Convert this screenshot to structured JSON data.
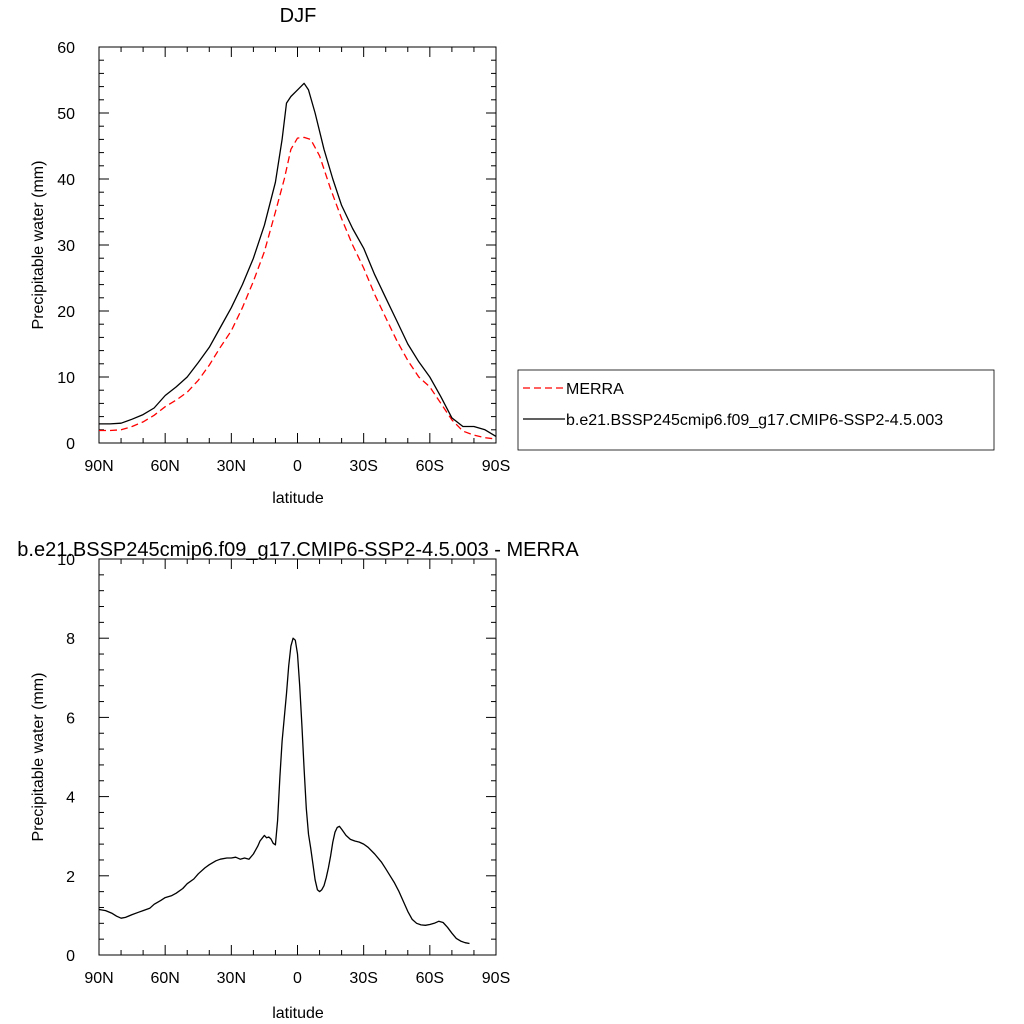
{
  "chart_data": [
    {
      "type": "line",
      "title": "DJF",
      "xlabel": "latitude",
      "ylabel": "Precipitable water (mm)",
      "xlim": [
        90,
        -90
      ],
      "ylim": [
        0,
        60
      ],
      "xticks": [
        {
          "value": 90,
          "label": "90N"
        },
        {
          "value": 60,
          "label": "60N"
        },
        {
          "value": 30,
          "label": "30N"
        },
        {
          "value": 0,
          "label": "0"
        },
        {
          "value": -30,
          "label": "30S"
        },
        {
          "value": -60,
          "label": "60S"
        },
        {
          "value": -90,
          "label": "90S"
        }
      ],
      "yticks": [
        0,
        10,
        20,
        30,
        40,
        50,
        60
      ],
      "legend_position": "right",
      "series": [
        {
          "name": "MERRA",
          "color": "#ff0000",
          "dash": "dashed",
          "points": [
            [
              90,
              1.9
            ],
            [
              85,
              1.9
            ],
            [
              80,
              2.0
            ],
            [
              75,
              2.5
            ],
            [
              70,
              3.2
            ],
            [
              65,
              4.2
            ],
            [
              60,
              5.5
            ],
            [
              55,
              6.5
            ],
            [
              50,
              7.7
            ],
            [
              45,
              9.5
            ],
            [
              40,
              11.8
            ],
            [
              35,
              14.5
            ],
            [
              30,
              17.0
            ],
            [
              25,
              20.5
            ],
            [
              20,
              24.5
            ],
            [
              15,
              29.0
            ],
            [
              10,
              35.0
            ],
            [
              6,
              40.0
            ],
            [
              3,
              44.5
            ],
            [
              0,
              46.2
            ],
            [
              -3,
              46.3
            ],
            [
              -6,
              46.0
            ],
            [
              -10,
              43.5
            ],
            [
              -15,
              38.5
            ],
            [
              -20,
              34.0
            ],
            [
              -25,
              30.0
            ],
            [
              -30,
              26.5
            ],
            [
              -35,
              22.5
            ],
            [
              -40,
              19.0
            ],
            [
              -45,
              15.5
            ],
            [
              -50,
              12.5
            ],
            [
              -55,
              10.0
            ],
            [
              -60,
              8.5
            ],
            [
              -65,
              6.0
            ],
            [
              -70,
              3.5
            ],
            [
              -75,
              1.8
            ],
            [
              -80,
              1.2
            ],
            [
              -85,
              0.8
            ],
            [
              -90,
              0.6
            ]
          ]
        },
        {
          "name": "b.e21.BSSP245cmip6.f09_g17.CMIP6-SSP2-4.5.003",
          "color": "#000000",
          "dash": "solid",
          "points": [
            [
              90,
              2.9
            ],
            [
              85,
              2.9
            ],
            [
              80,
              3.0
            ],
            [
              75,
              3.6
            ],
            [
              70,
              4.3
            ],
            [
              65,
              5.3
            ],
            [
              60,
              7.2
            ],
            [
              55,
              8.5
            ],
            [
              50,
              10.0
            ],
            [
              45,
              12.2
            ],
            [
              40,
              14.5
            ],
            [
              35,
              17.5
            ],
            [
              30,
              20.5
            ],
            [
              25,
              24.0
            ],
            [
              20,
              28.0
            ],
            [
              15,
              33.0
            ],
            [
              10,
              39.5
            ],
            [
              7,
              46.0
            ],
            [
              5,
              51.5
            ],
            [
              3,
              52.5
            ],
            [
              0,
              53.5
            ],
            [
              -3,
              54.5
            ],
            [
              -5,
              53.5
            ],
            [
              -8,
              50.0
            ],
            [
              -12,
              44.5
            ],
            [
              -16,
              40.0
            ],
            [
              -20,
              36.0
            ],
            [
              -25,
              32.5
            ],
            [
              -30,
              29.5
            ],
            [
              -35,
              25.5
            ],
            [
              -40,
              22.0
            ],
            [
              -45,
              18.5
            ],
            [
              -50,
              15.0
            ],
            [
              -55,
              12.3
            ],
            [
              -60,
              10.0
            ],
            [
              -65,
              7.0
            ],
            [
              -70,
              3.8
            ],
            [
              -75,
              2.5
            ],
            [
              -80,
              2.5
            ],
            [
              -85,
              2.0
            ],
            [
              -90,
              1.0
            ]
          ]
        }
      ]
    },
    {
      "type": "line",
      "title": "b.e21.BSSP245cmip6.f09_g17.CMIP6-SSP2-4.5.003 - MERRA",
      "xlabel": "latitude",
      "ylabel": "Precipitable water (mm)",
      "xlim": [
        90,
        -90
      ],
      "ylim": [
        0,
        10
      ],
      "xticks": [
        {
          "value": 90,
          "label": "90N"
        },
        {
          "value": 60,
          "label": "60N"
        },
        {
          "value": 30,
          "label": "30N"
        },
        {
          "value": 0,
          "label": "0"
        },
        {
          "value": -30,
          "label": "30S"
        },
        {
          "value": -60,
          "label": "60S"
        },
        {
          "value": -90,
          "label": "90S"
        }
      ],
      "yticks": [
        0,
        2,
        4,
        6,
        8,
        10
      ],
      "series": [
        {
          "color": "#000000",
          "dash": "solid",
          "points": [
            [
              90,
              1.15
            ],
            [
              87,
              1.12
            ],
            [
              84,
              1.05
            ],
            [
              82,
              0.98
            ],
            [
              80,
              0.93
            ],
            [
              78,
              0.95
            ],
            [
              75,
              1.02
            ],
            [
              72,
              1.08
            ],
            [
              70,
              1.12
            ],
            [
              67,
              1.18
            ],
            [
              65,
              1.28
            ],
            [
              62,
              1.38
            ],
            [
              60,
              1.45
            ],
            [
              57,
              1.5
            ],
            [
              55,
              1.56
            ],
            [
              52,
              1.68
            ],
            [
              50,
              1.8
            ],
            [
              47,
              1.92
            ],
            [
              45,
              2.05
            ],
            [
              42,
              2.2
            ],
            [
              40,
              2.28
            ],
            [
              37,
              2.38
            ],
            [
              35,
              2.42
            ],
            [
              32,
              2.45
            ],
            [
              30,
              2.45
            ],
            [
              28,
              2.47
            ],
            [
              26,
              2.42
            ],
            [
              24,
              2.45
            ],
            [
              22,
              2.42
            ],
            [
              20,
              2.55
            ],
            [
              18,
              2.75
            ],
            [
              17,
              2.88
            ],
            [
              16,
              2.95
            ],
            [
              15,
              3.02
            ],
            [
              14,
              2.96
            ],
            [
              13,
              2.98
            ],
            [
              12,
              2.93
            ],
            [
              11,
              2.82
            ],
            [
              10,
              2.78
            ],
            [
              9,
              3.4
            ],
            [
              8,
              4.5
            ],
            [
              7,
              5.4
            ],
            [
              6,
              6.0
            ],
            [
              5,
              6.6
            ],
            [
              4,
              7.3
            ],
            [
              3,
              7.8
            ],
            [
              2,
              8.0
            ],
            [
              1,
              7.95
            ],
            [
              0,
              7.6
            ],
            [
              -1,
              6.8
            ],
            [
              -2,
              5.8
            ],
            [
              -3,
              4.7
            ],
            [
              -4,
              3.7
            ],
            [
              -5,
              3.05
            ],
            [
              -6,
              2.7
            ],
            [
              -7,
              2.3
            ],
            [
              -8,
              1.9
            ],
            [
              -9,
              1.65
            ],
            [
              -10,
              1.6
            ],
            [
              -11,
              1.65
            ],
            [
              -12,
              1.75
            ],
            [
              -13,
              1.95
            ],
            [
              -14,
              2.2
            ],
            [
              -15,
              2.5
            ],
            [
              -16,
              2.85
            ],
            [
              -17,
              3.1
            ],
            [
              -18,
              3.22
            ],
            [
              -19,
              3.25
            ],
            [
              -20,
              3.18
            ],
            [
              -22,
              3.02
            ],
            [
              -24,
              2.92
            ],
            [
              -26,
              2.88
            ],
            [
              -28,
              2.85
            ],
            [
              -30,
              2.8
            ],
            [
              -32,
              2.72
            ],
            [
              -35,
              2.55
            ],
            [
              -38,
              2.35
            ],
            [
              -40,
              2.18
            ],
            [
              -42,
              2.0
            ],
            [
              -44,
              1.82
            ],
            [
              -46,
              1.6
            ],
            [
              -48,
              1.35
            ],
            [
              -50,
              1.1
            ],
            [
              -52,
              0.9
            ],
            [
              -54,
              0.8
            ],
            [
              -56,
              0.76
            ],
            [
              -58,
              0.75
            ],
            [
              -60,
              0.77
            ],
            [
              -62,
              0.8
            ],
            [
              -64,
              0.85
            ],
            [
              -66,
              0.82
            ],
            [
              -68,
              0.7
            ],
            [
              -70,
              0.55
            ],
            [
              -72,
              0.42
            ],
            [
              -74,
              0.35
            ],
            [
              -76,
              0.31
            ],
            [
              -78,
              0.29
            ]
          ]
        }
      ]
    }
  ]
}
